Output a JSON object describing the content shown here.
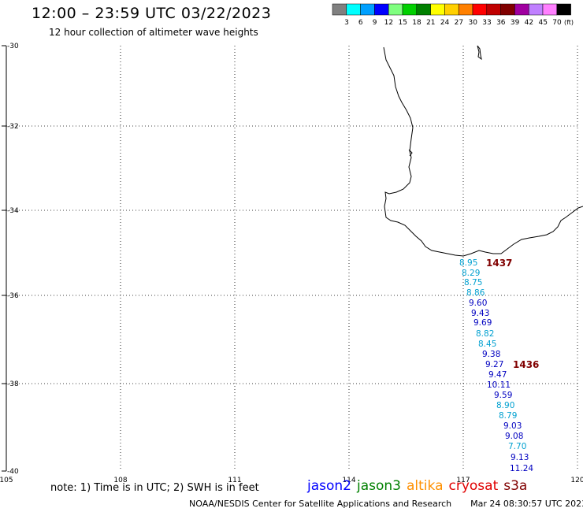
{
  "header": {
    "title": "12:00 – 23:59 UTC 03/22/2023",
    "subtitle": "12 hour collection of altimeter wave heights"
  },
  "scale": {
    "unit": "(ft)",
    "colors": [
      "#808080",
      "#00ffff",
      "#00a0ff",
      "#0000ff",
      "#80ff80",
      "#00d000",
      "#008000",
      "#ffff00",
      "#ffd000",
      "#ff8000",
      "#ff0000",
      "#c00000",
      "#800000",
      "#a000a0",
      "#c080ff",
      "#ff80ff",
      "#000000"
    ],
    "ticks": [
      "3",
      "6",
      "9",
      "12",
      "15",
      "18",
      "21",
      "24",
      "27",
      "30",
      "33",
      "36",
      "39",
      "42",
      "45",
      "70"
    ]
  },
  "axes": {
    "lon_labels": [
      "105",
      "108",
      "111",
      "114",
      "117",
      "120"
    ],
    "lat_labels": [
      "-30",
      "-32",
      "-34",
      "-36",
      "-38",
      "-40"
    ]
  },
  "observations": [
    {
      "value": "8.95",
      "color": "#00a0d0"
    },
    {
      "value": "8.29",
      "color": "#00a0d0"
    },
    {
      "value": "8.75",
      "color": "#00a0d0"
    },
    {
      "value": "8.86",
      "color": "#00a0d0"
    },
    {
      "value": "9.60",
      "color": "#0000c0"
    },
    {
      "value": "9.43",
      "color": "#0000c0"
    },
    {
      "value": "9.69",
      "color": "#0000c0"
    },
    {
      "value": "8.82",
      "color": "#00a0d0"
    },
    {
      "value": "8.45",
      "color": "#00a0d0"
    },
    {
      "value": "9.38",
      "color": "#0000c0"
    },
    {
      "value": "9.27",
      "color": "#0000c0"
    },
    {
      "value": "9.47",
      "color": "#0000c0"
    },
    {
      "value": "10.11",
      "color": "#0000c0"
    },
    {
      "value": "9.59",
      "color": "#0000c0"
    },
    {
      "value": "8.90",
      "color": "#00a0d0"
    },
    {
      "value": "8.79",
      "color": "#00a0d0"
    },
    {
      "value": "9.03",
      "color": "#0000c0"
    },
    {
      "value": "9.08",
      "color": "#0000c0"
    },
    {
      "value": "7.70",
      "color": "#00a0d0"
    },
    {
      "value": "9.13",
      "color": "#0000c0"
    },
    {
      "value": "11.24",
      "color": "#0000c0"
    }
  ],
  "times": [
    {
      "value": "1437",
      "color": "#800000"
    },
    {
      "value": "1436",
      "color": "#800000"
    }
  ],
  "note": "note: 1) Time is in UTC; 2) SWH is in feet",
  "legend": [
    {
      "label": "jason2",
      "color": "#0000ff"
    },
    {
      "label": "jason3",
      "color": "#008000"
    },
    {
      "label": "altika",
      "color": "#ff9000"
    },
    {
      "label": "cryosat",
      "color": "#e00000"
    },
    {
      "label": "s3a",
      "color": "#800000"
    }
  ],
  "footer": {
    "source": "NOAA/NESDIS Center for Satellite Applications and Research",
    "timestamp": "Mar 24 08:30:57 UTC 2023"
  }
}
